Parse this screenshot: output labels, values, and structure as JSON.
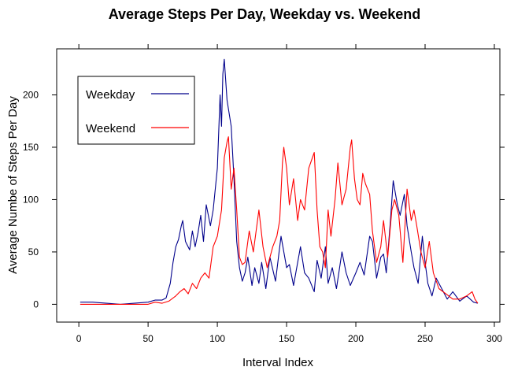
{
  "chart_data": {
    "type": "line",
    "title": "Average Steps Per Day, Weekday vs. Weekend",
    "xlabel": "Interval Index",
    "ylabel": "Average Numbe of Steps Per Day",
    "xlim": [
      -16,
      304
    ],
    "ylim": [
      -17,
      244
    ],
    "x_ticks": [
      0,
      50,
      100,
      150,
      200,
      250,
      300
    ],
    "y_ticks": [
      0,
      50,
      100,
      150,
      200
    ],
    "grid": false,
    "legend_position": "top-left",
    "series": [
      {
        "name": "Weekday",
        "color": "#00008B",
        "x": [
          1,
          10,
          20,
          30,
          40,
          50,
          55,
          60,
          63,
          66,
          68,
          70,
          72,
          74,
          75,
          77,
          80,
          82,
          84,
          86,
          88,
          90,
          92,
          95,
          97,
          100,
          102,
          103,
          104,
          105,
          107,
          110,
          112,
          114,
          116,
          118,
          120,
          122,
          125,
          127,
          130,
          132,
          135,
          138,
          142,
          146,
          150,
          152,
          155,
          160,
          163,
          166,
          170,
          172,
          175,
          178,
          180,
          183,
          186,
          190,
          193,
          196,
          200,
          203,
          206,
          210,
          212,
          215,
          218,
          220,
          222,
          225,
          227,
          230,
          232,
          235,
          237,
          240,
          242,
          245,
          248,
          250,
          252,
          255,
          258,
          262,
          266,
          270,
          275,
          280,
          285,
          288
        ],
        "y": [
          2,
          2,
          1,
          0,
          1,
          2,
          4,
          4,
          6,
          20,
          40,
          55,
          62,
          75,
          80,
          60,
          52,
          70,
          55,
          68,
          85,
          60,
          95,
          75,
          90,
          130,
          200,
          170,
          220,
          234,
          195,
          170,
          120,
          60,
          35,
          22,
          30,
          45,
          18,
          35,
          20,
          40,
          15,
          45,
          22,
          65,
          35,
          38,
          18,
          55,
          30,
          25,
          12,
          42,
          25,
          55,
          20,
          35,
          15,
          50,
          30,
          18,
          30,
          40,
          28,
          65,
          60,
          25,
          45,
          48,
          30,
          80,
          118,
          95,
          85,
          105,
          75,
          50,
          35,
          20,
          65,
          40,
          20,
          8,
          25,
          15,
          5,
          12,
          3,
          8,
          2,
          1
        ],
        "legend_label": "Weekday"
      },
      {
        "name": "Weekend",
        "color": "#FF0000",
        "x": [
          1,
          10,
          20,
          30,
          40,
          50,
          55,
          60,
          65,
          70,
          73,
          76,
          79,
          82,
          85,
          88,
          91,
          94,
          97,
          100,
          103,
          105,
          107,
          108,
          110,
          112,
          114,
          116,
          118,
          120,
          123,
          126,
          130,
          133,
          136,
          140,
          143,
          145,
          147,
          148,
          150,
          152,
          155,
          158,
          160,
          163,
          166,
          170,
          172,
          174,
          176,
          178,
          180,
          182,
          185,
          187,
          190,
          193,
          196,
          197,
          199,
          201,
          203,
          205,
          207,
          210,
          212,
          215,
          218,
          220,
          223,
          226,
          228,
          231,
          234,
          237,
          240,
          242,
          244,
          247,
          250,
          253,
          256,
          260,
          265,
          270,
          275,
          280,
          284,
          286,
          288
        ],
        "y": [
          0,
          0,
          0,
          0,
          0,
          0,
          2,
          1,
          3,
          8,
          12,
          15,
          10,
          20,
          15,
          25,
          30,
          25,
          55,
          65,
          90,
          140,
          155,
          160,
          110,
          130,
          90,
          45,
          38,
          40,
          70,
          50,
          90,
          55,
          35,
          55,
          65,
          80,
          135,
          150,
          130,
          95,
          120,
          80,
          100,
          90,
          130,
          145,
          90,
          55,
          50,
          35,
          90,
          65,
          100,
          135,
          95,
          110,
          150,
          157,
          120,
          100,
          95,
          125,
          115,
          105,
          70,
          40,
          55,
          80,
          45,
          90,
          100,
          85,
          40,
          110,
          80,
          90,
          75,
          50,
          35,
          60,
          30,
          15,
          10,
          5,
          5,
          8,
          12,
          5,
          1
        ],
        "legend_label": "Weekend"
      }
    ]
  }
}
